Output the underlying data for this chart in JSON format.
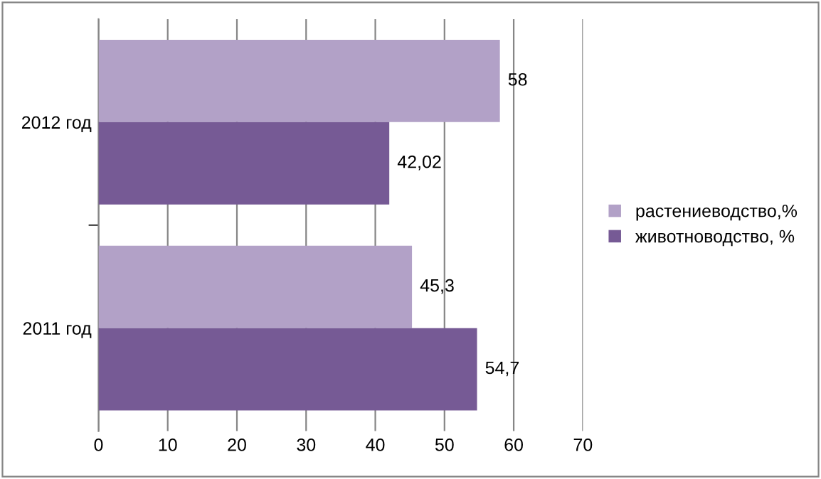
{
  "chart_data": {
    "type": "bar",
    "orientation": "horizontal",
    "categories": [
      "2012 год",
      "2011 год"
    ],
    "series": [
      {
        "name": "растениеводство,%",
        "color": "#b2a1c7",
        "values": [
          58,
          45.3
        ],
        "value_labels": [
          "58",
          "45,3"
        ]
      },
      {
        "name": "животноводство, %",
        "color": "#765a95",
        "values": [
          42.02,
          54.7
        ],
        "value_labels": [
          "42,02",
          "54,7"
        ]
      }
    ],
    "xlim": [
      0,
      70
    ],
    "xticks": [
      0,
      10,
      20,
      30,
      40,
      50,
      60,
      70
    ],
    "grid": "x",
    "legend": "right"
  }
}
